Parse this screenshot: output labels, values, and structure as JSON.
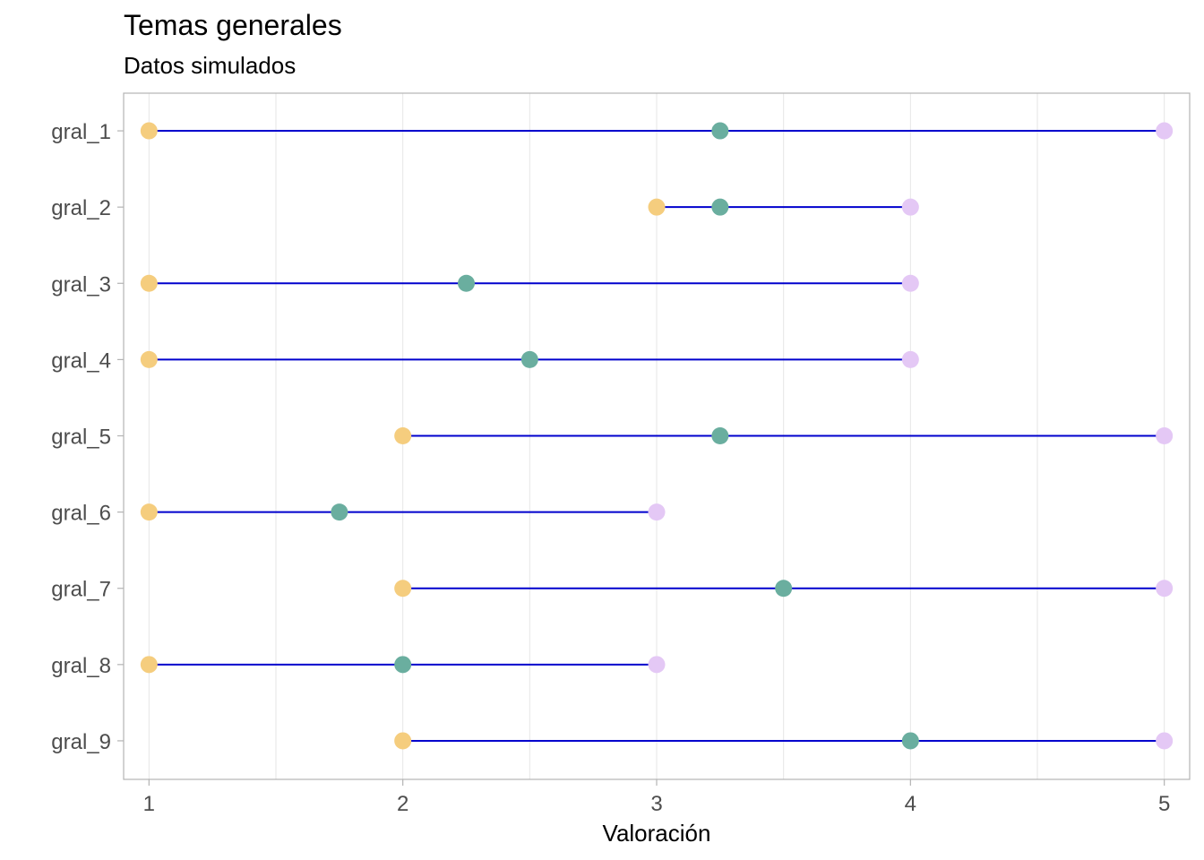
{
  "chart_data": {
    "type": "dumbbell",
    "title": "Temas generales",
    "subtitle": "Datos simulados",
    "xlabel": "Valoración",
    "ylabel": "",
    "xlim": [
      0.9,
      5.1
    ],
    "x_ticks": [
      1,
      2,
      3,
      4,
      5
    ],
    "x_minor_grid": [
      1.5,
      2.5,
      3.5,
      4.5
    ],
    "grid": true,
    "categories": [
      "gral_1",
      "gral_2",
      "gral_3",
      "gral_4",
      "gral_5",
      "gral_6",
      "gral_7",
      "gral_8",
      "gral_9"
    ],
    "series": [
      {
        "name": "",
        "color": "#F5CD7E",
        "values": [
          1,
          3,
          1,
          1,
          2,
          1,
          2,
          1,
          2
        ]
      },
      {
        "name": "",
        "color": "#6AAE9F",
        "values": [
          3.25,
          3.25,
          2.25,
          2.5,
          3.25,
          1.75,
          3.5,
          2,
          4
        ]
      },
      {
        "name": "",
        "color": "#E4C8F5",
        "values": [
          5,
          4,
          4,
          4,
          5,
          3,
          5,
          3,
          5
        ]
      }
    ],
    "segment_color": "#0000CD",
    "panel_border_color": "#b3b3b3",
    "grid_color": "#e6e6e6"
  }
}
